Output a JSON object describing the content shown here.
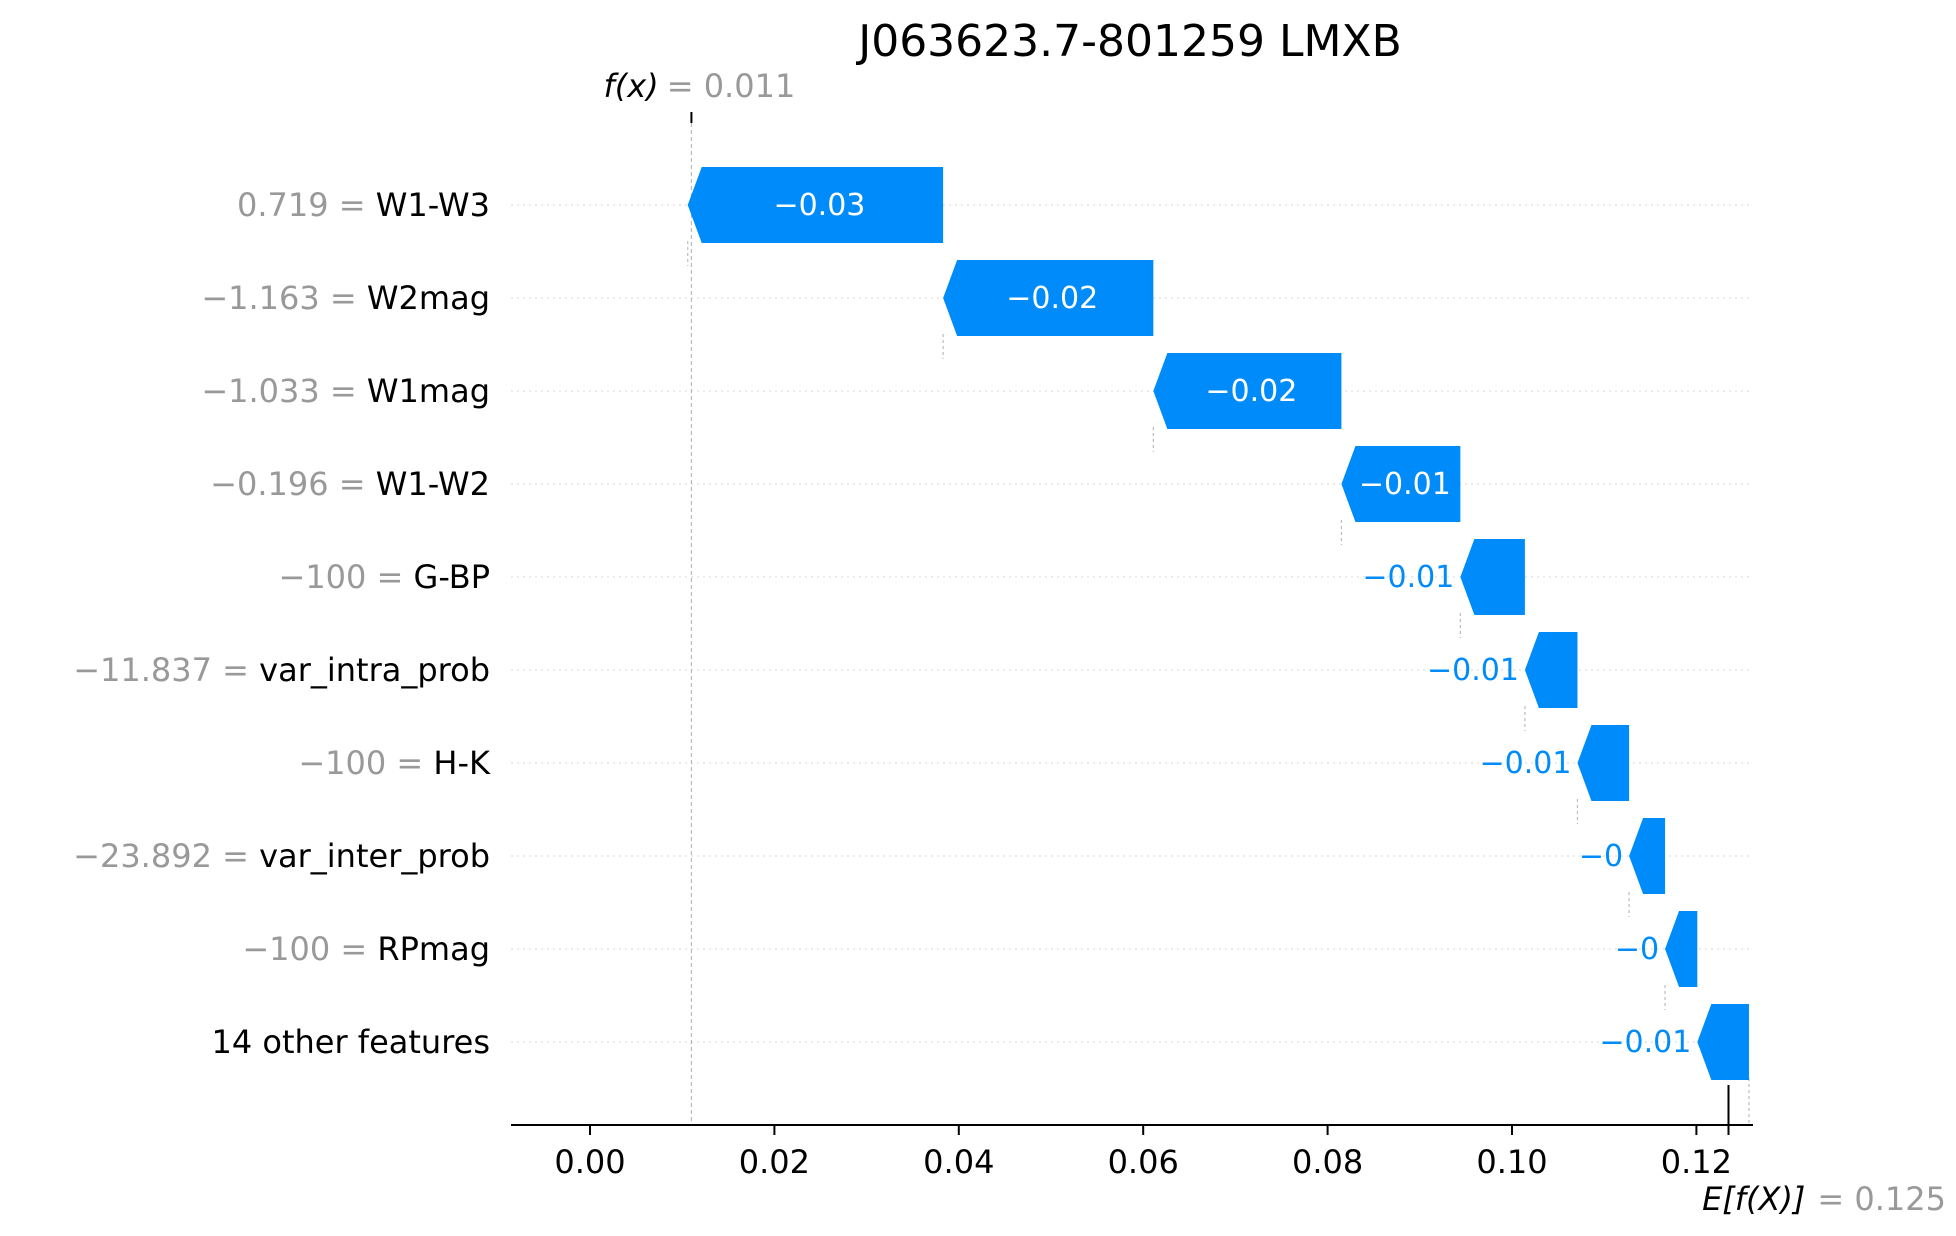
{
  "chart_data": {
    "type": "waterfall",
    "title": "J063623.7-801259 LMXB",
    "fx": {
      "label": "f(x)",
      "value_text": "= 0.011",
      "value": 0.011
    },
    "base": {
      "label": "E[f(X)]",
      "value_text": "= 0.125",
      "value": 0.125
    },
    "xlim": [
      -0.008,
      0.1245
    ],
    "xticks": [
      0.0,
      0.02,
      0.04,
      0.06,
      0.08,
      0.1,
      0.12
    ],
    "xtick_labels": [
      "0.00",
      "0.02",
      "0.04",
      "0.06",
      "0.08",
      "0.10",
      "0.12"
    ],
    "bar_color": "#008bfb",
    "features": [
      {
        "value": "0.719 =",
        "name": "W1-W3",
        "start": 0.0383,
        "end": 0.0106,
        "label": "−0.03",
        "label_inside": true
      },
      {
        "value": "−1.163 =",
        "name": "W2mag",
        "start": 0.0611,
        "end": 0.0383,
        "label": "−0.02",
        "label_inside": true
      },
      {
        "value": "−1.033 =",
        "name": "W1mag",
        "start": 0.0815,
        "end": 0.0611,
        "label": "−0.02",
        "label_inside": true
      },
      {
        "value": "−0.196 =",
        "name": "W1-W2",
        "start": 0.0944,
        "end": 0.0815,
        "label": "−0.01",
        "label_inside": true
      },
      {
        "value": "−100 =",
        "name": "G-BP",
        "start": 0.1014,
        "end": 0.0944,
        "label": "−0.01",
        "label_inside": false
      },
      {
        "value": "−11.837 =",
        "name": "var_intra_prob",
        "start": 0.1071,
        "end": 0.1014,
        "label": "−0.01",
        "label_inside": false
      },
      {
        "value": "−100 =",
        "name": "H-K",
        "start": 0.1127,
        "end": 0.1071,
        "label": "−0.01",
        "label_inside": false
      },
      {
        "value": "−23.892 =",
        "name": "var_inter_prob",
        "start": 0.1166,
        "end": 0.1127,
        "label": "−0",
        "label_inside": false
      },
      {
        "value": "−100 =",
        "name": "RPmag",
        "start": 0.1201,
        "end": 0.1166,
        "label": "−0",
        "label_inside": false
      },
      {
        "value": "",
        "name": "14 other features",
        "start": 0.1257,
        "end": 0.1201,
        "label": "−0.01",
        "label_inside": false
      }
    ]
  }
}
